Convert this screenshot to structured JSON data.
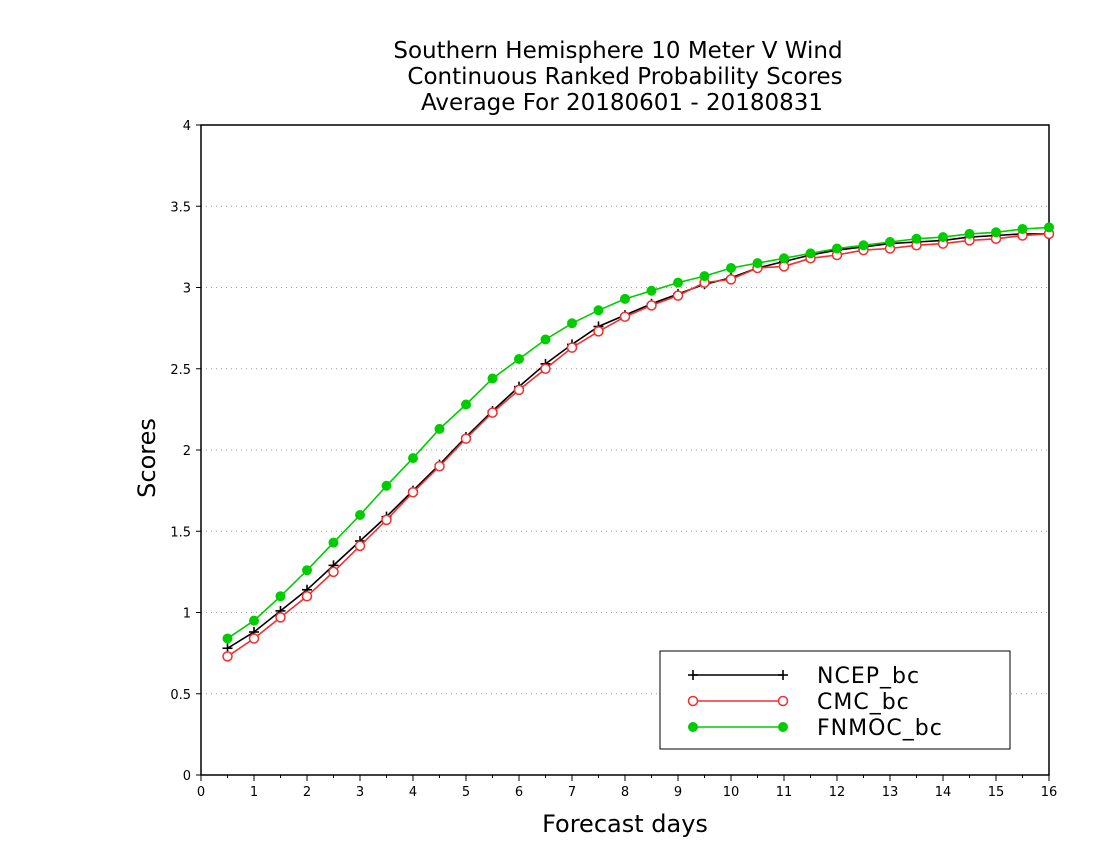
{
  "chart_data": {
    "type": "line",
    "title_lines": [
      "Southern Hemisphere 10 Meter V Wind",
      "Continuous Ranked Probability Scores",
      "Average For 20180601 - 20180831"
    ],
    "xlabel": "Forecast days",
    "ylabel": "Scores",
    "xlim": [
      0,
      16
    ],
    "ylim": [
      0,
      4
    ],
    "x_ticks": [
      "0",
      "1",
      "2",
      "3",
      "4",
      "5",
      "6",
      "7",
      "8",
      "9",
      "10",
      "11",
      "12",
      "13",
      "14",
      "15",
      "16"
    ],
    "y_ticks": [
      "0",
      "0.5",
      "1",
      "1.5",
      "2",
      "2.5",
      "3",
      "3.5",
      "4"
    ],
    "grid": "horizontal dotted",
    "legend_position": "bottom-right",
    "x": [
      0.5,
      1,
      1.5,
      2,
      2.5,
      3,
      3.5,
      4,
      4.5,
      5,
      5.5,
      6,
      6.5,
      7,
      7.5,
      8,
      8.5,
      9,
      9.5,
      10,
      10.5,
      11,
      11.5,
      12,
      12.5,
      13,
      13.5,
      14,
      14.5,
      15,
      15.5,
      16
    ],
    "series": [
      {
        "name": "NCEP_bc",
        "color": "#000000",
        "marker": "plus",
        "values": [
          0.78,
          0.88,
          1.01,
          1.14,
          1.29,
          1.44,
          1.59,
          1.75,
          1.91,
          2.08,
          2.24,
          2.39,
          2.53,
          2.65,
          2.76,
          2.83,
          2.9,
          2.96,
          3.02,
          3.06,
          3.12,
          3.16,
          3.2,
          3.23,
          3.25,
          3.27,
          3.28,
          3.29,
          3.31,
          3.32,
          3.33,
          3.33
        ]
      },
      {
        "name": "CMC_bc",
        "color": "#ee3030",
        "marker": "open-circle",
        "values": [
          0.73,
          0.84,
          0.97,
          1.1,
          1.25,
          1.41,
          1.57,
          1.74,
          1.9,
          2.07,
          2.23,
          2.37,
          2.5,
          2.63,
          2.73,
          2.82,
          2.89,
          2.95,
          3.03,
          3.05,
          3.12,
          3.13,
          3.18,
          3.2,
          3.23,
          3.24,
          3.26,
          3.27,
          3.29,
          3.3,
          3.32,
          3.33
        ]
      },
      {
        "name": "FNMOC_bc",
        "color": "#00cc00",
        "marker": "filled-circle",
        "values": [
          0.84,
          0.95,
          1.1,
          1.26,
          1.43,
          1.6,
          1.78,
          1.95,
          2.13,
          2.28,
          2.44,
          2.56,
          2.68,
          2.78,
          2.86,
          2.93,
          2.98,
          3.03,
          3.07,
          3.12,
          3.15,
          3.18,
          3.21,
          3.24,
          3.26,
          3.28,
          3.3,
          3.31,
          3.33,
          3.34,
          3.36,
          3.37
        ]
      }
    ]
  }
}
